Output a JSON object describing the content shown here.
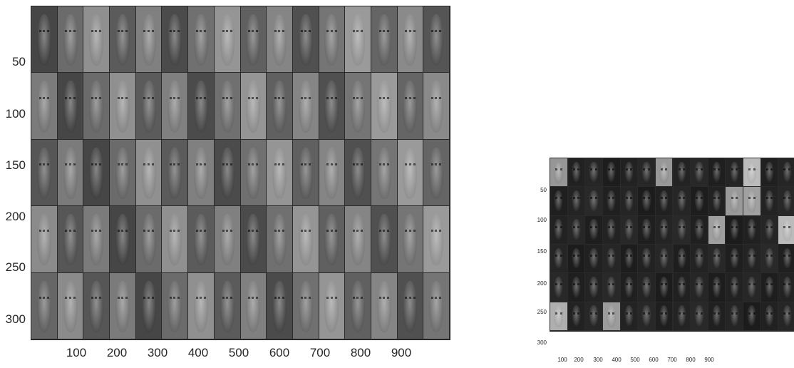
{
  "plots": [
    {
      "id": "plot1",
      "yticks": [
        "50",
        "100",
        "150",
        "200",
        "250",
        "300"
      ],
      "xticks": [
        "100",
        "200",
        "300",
        "400",
        "500",
        "600",
        "700",
        "800",
        "900"
      ]
    },
    {
      "id": "plot2",
      "yticks": [
        "50",
        "100",
        "150",
        "200",
        "250",
        "300"
      ],
      "xticks": [
        "100",
        "200",
        "300",
        "400",
        "500",
        "600",
        "700",
        "800",
        "900"
      ]
    }
  ]
}
